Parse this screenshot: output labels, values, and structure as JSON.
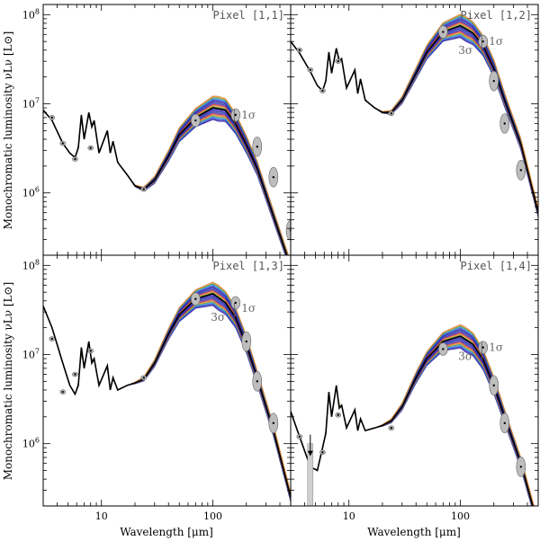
{
  "chart_data": {
    "type": "line",
    "title": "",
    "xlabel": "Wavelength [μm]",
    "ylabel": "Monochromatic luminosity νLν [L⊙]",
    "xscale": "log",
    "yscale": "log",
    "xlim": [
      3,
      500
    ],
    "ylim": [
      200000,
      130000000
    ],
    "x_ticks": [
      "10",
      "100"
    ],
    "y_ticks": [
      "10^6",
      "10^7",
      "10^8"
    ],
    "sigma_labels": [
      "1σ",
      "3σ"
    ],
    "panels": [
      {
        "title": "Pixel [1,1]",
        "sed": [
          [
            3,
            8500000.0
          ],
          [
            3.6,
            6500000.0
          ],
          [
            4.5,
            3600000.0
          ],
          [
            5.2,
            2800000.0
          ],
          [
            5.8,
            2500000.0
          ],
          [
            6.2,
            3200000.0
          ],
          [
            6.6,
            7500000.0
          ],
          [
            7.0,
            4000000.0
          ],
          [
            7.7,
            8000000.0
          ],
          [
            8.2,
            5500000.0
          ],
          [
            8.6,
            6500000.0
          ],
          [
            9.5,
            2800000.0
          ],
          [
            11.3,
            5000000.0
          ],
          [
            12,
            2800000.0
          ],
          [
            12.7,
            3800000.0
          ],
          [
            14,
            2200000.0
          ],
          [
            17,
            1600000.0
          ],
          [
            20,
            1200000.0
          ],
          [
            24,
            1100000.0
          ],
          [
            30,
            1400000.0
          ],
          [
            40,
            2600000.0
          ],
          [
            50,
            4500000.0
          ],
          [
            70,
            7000000.0
          ],
          [
            100,
            9000000.0
          ],
          [
            130,
            8500000.0
          ],
          [
            160,
            6000000.0
          ],
          [
            200,
            3500000.0
          ],
          [
            250,
            1900000.0
          ],
          [
            350,
            550000.0
          ],
          [
            500,
            150000.0
          ]
        ],
        "photometry": [
          [
            3.6,
            7000000.0
          ],
          [
            4.5,
            3600000.0
          ],
          [
            5.8,
            2400000.0
          ],
          [
            8.0,
            3200000.0
          ],
          [
            24,
            1100000.0
          ],
          [
            70,
            6500000.0
          ],
          [
            160,
            7500000.0
          ],
          [
            250,
            3300000.0
          ],
          [
            350,
            1500000.0
          ],
          [
            500,
            380000.0
          ]
        ],
        "upper_limits": [],
        "sigma_label_pos": [
          150,
          7500000.0
        ]
      },
      {
        "title": "Pixel [1,2]",
        "sed": [
          [
            3,
            50000000.0
          ],
          [
            3.6,
            37000000.0
          ],
          [
            4.5,
            23000000.0
          ],
          [
            5.2,
            16000000.0
          ],
          [
            5.8,
            14000000.0
          ],
          [
            6.2,
            18000000.0
          ],
          [
            6.6,
            38000000.0
          ],
          [
            7.0,
            22000000.0
          ],
          [
            7.7,
            42000000.0
          ],
          [
            8.2,
            30000000.0
          ],
          [
            8.6,
            32000000.0
          ],
          [
            9.5,
            15000000.0
          ],
          [
            11.3,
            24000000.0
          ],
          [
            12,
            13000000.0
          ],
          [
            12.7,
            19000000.0
          ],
          [
            14,
            11000000.0
          ],
          [
            17,
            9000000.0
          ],
          [
            20,
            8000000.0
          ],
          [
            24,
            8000000.0
          ],
          [
            30,
            11000000.0
          ],
          [
            40,
            22000000.0
          ],
          [
            50,
            38000000.0
          ],
          [
            70,
            64000000.0
          ],
          [
            100,
            75000000.0
          ],
          [
            130,
            62000000.0
          ],
          [
            160,
            45000000.0
          ],
          [
            200,
            25000000.0
          ],
          [
            250,
            11000000.0
          ],
          [
            350,
            3500000.0
          ],
          [
            500,
            600000.0
          ]
        ],
        "photometry": [
          [
            3.6,
            40000000.0
          ],
          [
            4.5,
            24000000.0
          ],
          [
            5.8,
            14000000.0
          ],
          [
            8.0,
            30000000.0
          ],
          [
            24,
            7800000.0
          ],
          [
            70,
            64000000.0
          ],
          [
            160,
            50000000.0
          ],
          [
            200,
            18000000.0
          ],
          [
            250,
            6000000.0
          ],
          [
            350,
            1800000.0
          ]
        ],
        "upper_limits": [],
        "sigma_label_pos": [
          150,
          50000000.0
        ]
      },
      {
        "title": "Pixel [1,3]",
        "sed": [
          [
            3,
            35000000.0
          ],
          [
            3.6,
            20000000.0
          ],
          [
            4.5,
            8000000.0
          ],
          [
            5.2,
            4500000.0
          ],
          [
            5.8,
            3600000.0
          ],
          [
            6.2,
            4500000.0
          ],
          [
            6.6,
            12000000.0
          ],
          [
            7.0,
            7000000.0
          ],
          [
            7.7,
            14000000.0
          ],
          [
            8.2,
            8000000.0
          ],
          [
            8.6,
            9000000.0
          ],
          [
            9.5,
            4500000.0
          ],
          [
            11.3,
            7500000.0
          ],
          [
            12,
            4000000.0
          ],
          [
            12.7,
            5500000.0
          ],
          [
            14,
            4000000.0
          ],
          [
            17,
            4500000.0
          ],
          [
            20,
            4800000.0
          ],
          [
            24,
            5300000.0
          ],
          [
            30,
            8000000.0
          ],
          [
            40,
            17000000.0
          ],
          [
            50,
            28000000.0
          ],
          [
            70,
            42000000.0
          ],
          [
            100,
            48000000.0
          ],
          [
            130,
            38000000.0
          ],
          [
            160,
            26000000.0
          ],
          [
            200,
            13000000.0
          ],
          [
            250,
            5500000.0
          ],
          [
            350,
            1400000.0
          ],
          [
            500,
            250000.0
          ]
        ],
        "photometry": [
          [
            3.6,
            15000000.0
          ],
          [
            4.5,
            3800000.0
          ],
          [
            5.8,
            6000000.0
          ],
          [
            8.0,
            11000000.0
          ],
          [
            24,
            5500000.0
          ],
          [
            70,
            42000000.0
          ],
          [
            160,
            38000000.0
          ],
          [
            200,
            14000000.0
          ],
          [
            250,
            5000000.0
          ],
          [
            350,
            1700000.0
          ]
        ],
        "upper_limits": [],
        "sigma_label_pos": [
          150,
          33000000.0
        ]
      },
      {
        "title": "Pixel [1,4]",
        "sed": [
          [
            3,
            2300000.0
          ],
          [
            3.6,
            1200000.0
          ],
          [
            4.5,
            550000.0
          ],
          [
            5.2,
            500000.0
          ],
          [
            5.8,
            900000.0
          ],
          [
            6.2,
            1300000.0
          ],
          [
            6.6,
            3800000.0
          ],
          [
            7.0,
            2000000.0
          ],
          [
            7.7,
            4500000.0
          ],
          [
            8.2,
            2500000.0
          ],
          [
            8.6,
            2700000.0
          ],
          [
            9.5,
            1500000.0
          ],
          [
            11.3,
            2400000.0
          ],
          [
            12,
            1400000.0
          ],
          [
            12.7,
            1900000.0
          ],
          [
            14,
            1400000.0
          ],
          [
            17,
            1500000.0
          ],
          [
            20,
            1600000.0
          ],
          [
            24,
            1800000.0
          ],
          [
            30,
            2600000.0
          ],
          [
            40,
            5500000.0
          ],
          [
            50,
            9000000.0
          ],
          [
            70,
            14000000.0
          ],
          [
            100,
            16000000.0
          ],
          [
            130,
            13000000.0
          ],
          [
            160,
            8800000.0
          ],
          [
            200,
            4500000.0
          ],
          [
            250,
            2000000.0
          ],
          [
            350,
            600000.0
          ],
          [
            500,
            120000.0
          ]
        ],
        "photometry": [
          [
            3.6,
            1200000.0
          ],
          [
            5.8,
            800000.0
          ],
          [
            8.0,
            2100000.0
          ],
          [
            24,
            1500000.0
          ],
          [
            70,
            11500000.0
          ],
          [
            160,
            12000000.0
          ],
          [
            200,
            4500000.0
          ],
          [
            250,
            1700000.0
          ],
          [
            350,
            550000.0
          ]
        ],
        "upper_limits": [
          [
            4.5,
            1000000.0
          ]
        ],
        "sigma_label_pos": [
          150,
          12000000.0
        ]
      }
    ]
  }
}
